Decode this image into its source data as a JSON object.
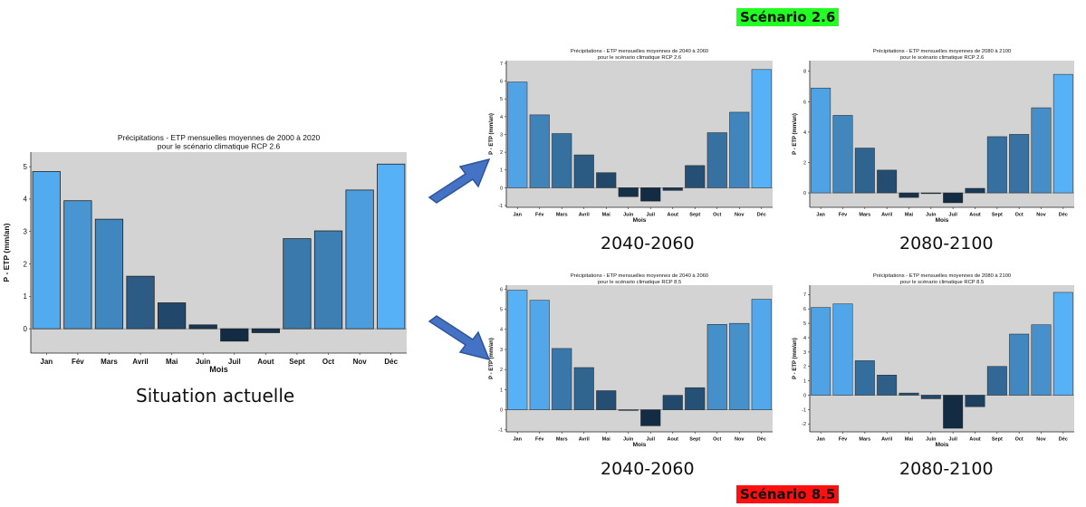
{
  "scenario_labels": {
    "rcp26": {
      "text": "Scénario 2.6",
      "color": "#22ff22"
    },
    "rcp85": {
      "text": "Scénario 8.5",
      "color": "#ff1010"
    }
  },
  "captions": {
    "current": "Situation actuelle",
    "rcp26_2040": "2040-2060",
    "rcp26_2080": "2080-2100",
    "rcp85_2040": "2040-2060",
    "rcp85_2080": "2080-2100"
  },
  "colors": {
    "plot_background": "#d3d3d3",
    "bar_light": "#56b1f7",
    "bar_dark": "#132b43",
    "arrow": "#4472c4"
  },
  "chart_data": [
    {
      "id": "current",
      "type": "bar",
      "title": "Précipitations - ETP mensuelles moyennes de 2000 à 2020\npour le scénario climatique RCP 2.6",
      "xlabel": "Mois",
      "ylabel": "P - ETP (mm/an)",
      "categories": [
        "Jan",
        "Fév",
        "Mars",
        "Avril",
        "Mai",
        "Juin",
        "Juil",
        "Aout",
        "Sept",
        "Oct",
        "Nov",
        "Déc"
      ],
      "values": [
        4.85,
        3.95,
        3.38,
        1.62,
        0.8,
        0.12,
        -0.38,
        -0.12,
        2.78,
        3.02,
        4.28,
        5.08
      ],
      "yticks": [
        0,
        1,
        2,
        3,
        4,
        5
      ],
      "ylim": [
        -0.75,
        5.45
      ],
      "grid": false
    },
    {
      "id": "rcp26_2040",
      "type": "bar",
      "title": "Précipitations - ETP mensuelles moyennes de 2040 à 2060\npour le scénario climatique RCP 2.6",
      "xlabel": "Mois",
      "ylabel": "P - ETP (mm/an)",
      "categories": [
        "Jan",
        "Fév",
        "Mars",
        "Avril",
        "Mai",
        "Juin",
        "Juil",
        "Aout",
        "Sept",
        "Oct",
        "Nov",
        "Déc"
      ],
      "values": [
        5.95,
        4.1,
        3.05,
        1.85,
        0.85,
        -0.5,
        -0.75,
        -0.15,
        1.25,
        3.1,
        4.25,
        6.65
      ],
      "yticks": [
        -1,
        0,
        1,
        2,
        3,
        4,
        5,
        6,
        7
      ],
      "ylim": [
        -1.1,
        7.15
      ],
      "grid": false
    },
    {
      "id": "rcp26_2080",
      "type": "bar",
      "title": "Précipitations - ETP mensuelles moyennes de 2080 à 2100\npour le scénario climatique RCP 2.6",
      "xlabel": "Mois",
      "ylabel": "P - ETP (mm/an)",
      "categories": [
        "Jan",
        "Fév",
        "Mars",
        "Avril",
        "Mai",
        "Juin",
        "Juil",
        "Aout",
        "Sept",
        "Oct",
        "Nov",
        "Déc"
      ],
      "values": [
        6.9,
        5.1,
        2.95,
        1.5,
        -0.3,
        -0.05,
        -0.65,
        0.3,
        3.7,
        3.85,
        5.6,
        7.8
      ],
      "yticks": [
        0,
        2,
        4,
        6,
        8
      ],
      "ylim": [
        -0.95,
        8.7
      ],
      "grid": false
    },
    {
      "id": "rcp85_2040",
      "type": "bar",
      "title": "Précipitations - ETP mensuelles moyennes de 2040 à 2060\npour le scénario climatique RCP 8.5",
      "xlabel": "Mois",
      "ylabel": "P - ETP (mm/an)",
      "categories": [
        "Jan",
        "Fév",
        "Mars",
        "Avril",
        "Mai",
        "Juin",
        "Juil",
        "Aout",
        "Sept",
        "Oct",
        "Nov",
        "Déc"
      ],
      "values": [
        5.95,
        5.45,
        3.05,
        2.1,
        0.95,
        -0.02,
        -0.8,
        0.72,
        1.1,
        4.25,
        4.3,
        5.5
      ],
      "yticks": [
        -1,
        0,
        1,
        2,
        3,
        4,
        5,
        6
      ],
      "ylim": [
        -1.1,
        6.2
      ],
      "grid": false
    },
    {
      "id": "rcp85_2080",
      "type": "bar",
      "title": "Précipitations - ETP mensuelles moyennes de 2080 à 2100\npour le scénario climatique RCP 8.5",
      "xlabel": "Mois",
      "ylabel": "P - ETP (mm/an)",
      "categories": [
        "Jan",
        "Fév",
        "Mars",
        "Avril",
        "Mai",
        "Juin",
        "Juil",
        "Aout",
        "Sept",
        "Oct",
        "Nov",
        "Déc"
      ],
      "values": [
        6.1,
        6.35,
        2.4,
        1.4,
        0.15,
        -0.25,
        -2.3,
        -0.8,
        2.0,
        4.25,
        4.9,
        7.15
      ],
      "yticks": [
        -2,
        -1,
        0,
        1,
        2,
        3,
        4,
        5,
        6,
        7
      ],
      "ylim": [
        -2.55,
        7.65
      ],
      "grid": false
    }
  ]
}
